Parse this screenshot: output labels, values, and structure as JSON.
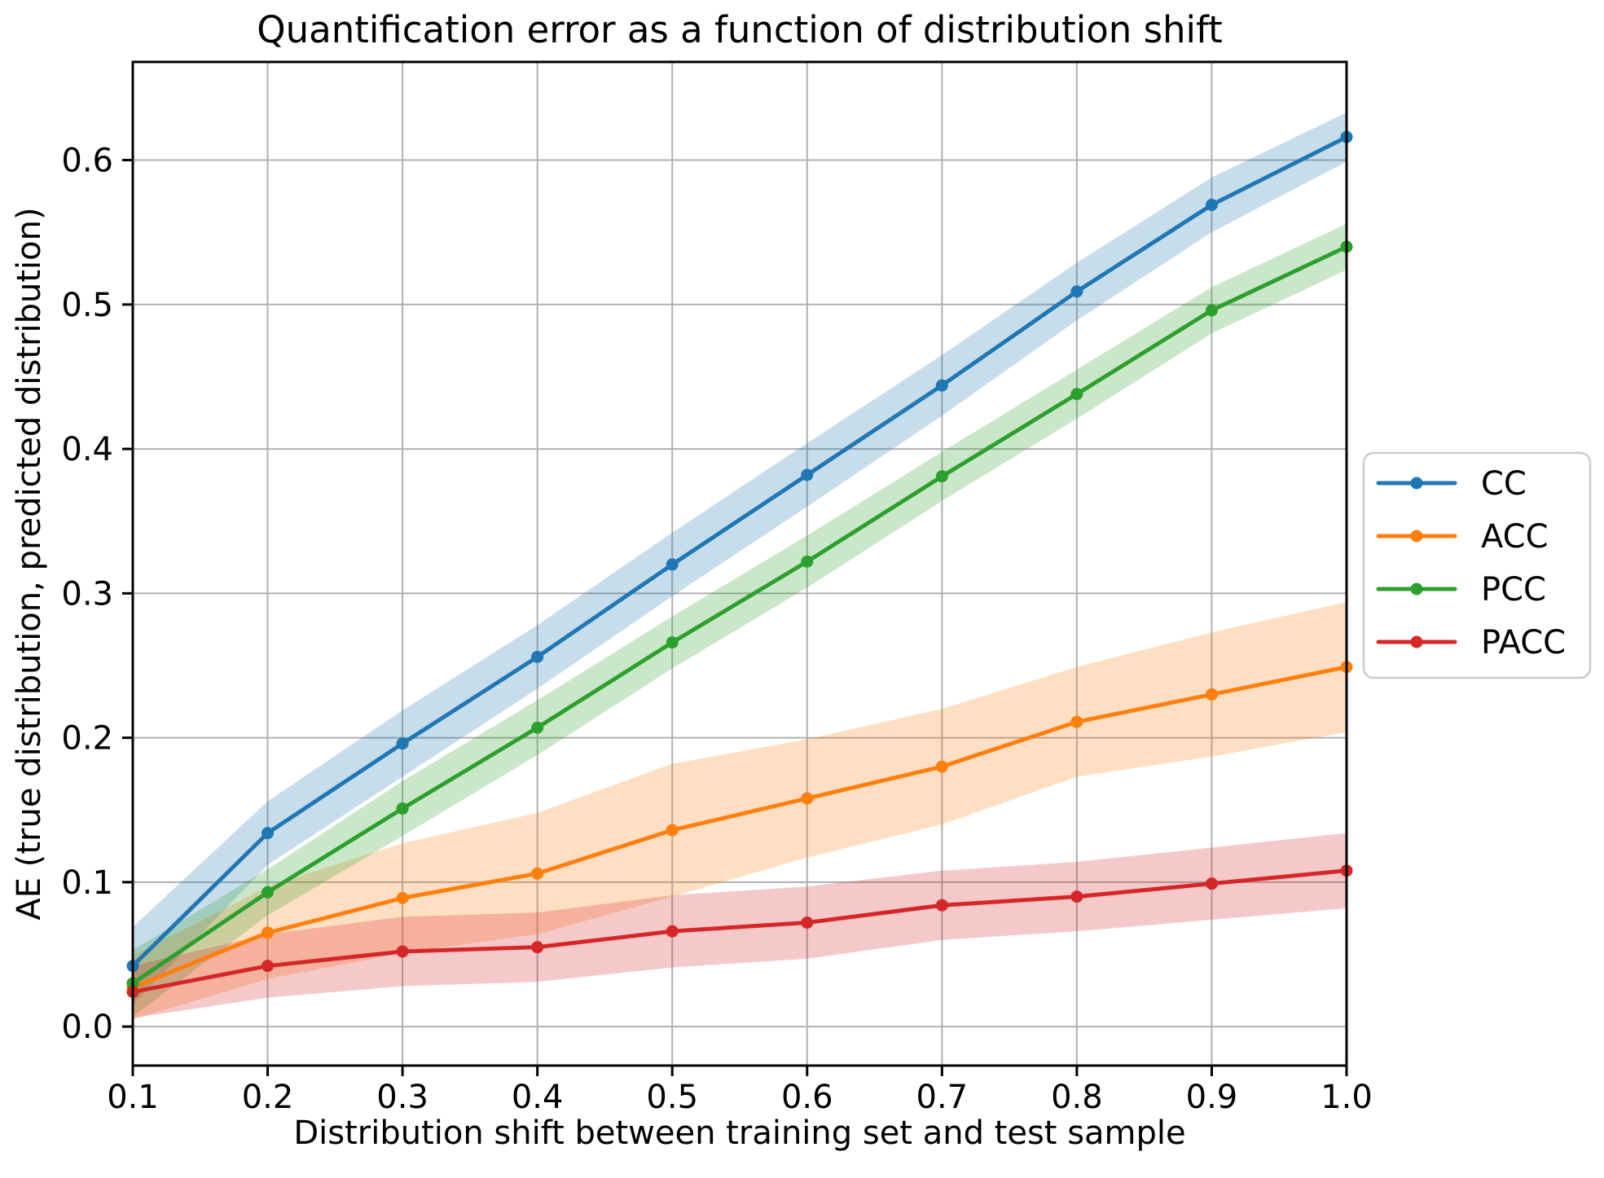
{
  "chart_data": {
    "type": "line",
    "title": "Quantification error as a function of distribution shift",
    "xlabel": "Distribution shift between training set and test sample",
    "ylabel": "AE (true distribution, predicted distribution)",
    "x": [
      0.1,
      0.2,
      0.3,
      0.4,
      0.5,
      0.6,
      0.7,
      0.8,
      0.9,
      1.0
    ],
    "xlim": [
      0.1,
      1.0
    ],
    "ylim": [
      -0.027,
      0.668
    ],
    "xticks": [
      "0.1",
      "0.2",
      "0.3",
      "0.4",
      "0.5",
      "0.6",
      "0.7",
      "0.8",
      "0.9",
      "1.0"
    ],
    "yticks": [
      "0.0",
      "0.1",
      "0.2",
      "0.3",
      "0.4",
      "0.5",
      "0.6"
    ],
    "grid": true,
    "marker": "circle",
    "band_opacity": 0.25,
    "legend_position": "right-outside",
    "series": [
      {
        "name": "CC",
        "color": "#1f77b4",
        "values": [
          0.042,
          0.134,
          0.196,
          0.256,
          0.32,
          0.382,
          0.444,
          0.509,
          0.569,
          0.616
        ],
        "band_lower": [
          0.015,
          0.112,
          0.173,
          0.234,
          0.298,
          0.36,
          0.423,
          0.489,
          0.55,
          0.599
        ],
        "band_upper": [
          0.069,
          0.156,
          0.219,
          0.278,
          0.342,
          0.404,
          0.465,
          0.529,
          0.588,
          0.633
        ]
      },
      {
        "name": "ACC",
        "color": "#ff7f0e",
        "values": [
          0.027,
          0.065,
          0.089,
          0.106,
          0.136,
          0.158,
          0.18,
          0.211,
          0.23,
          0.249
        ],
        "band_lower": [
          0.005,
          0.033,
          0.051,
          0.064,
          0.09,
          0.117,
          0.14,
          0.173,
          0.187,
          0.204
        ],
        "band_upper": [
          0.049,
          0.097,
          0.127,
          0.148,
          0.182,
          0.199,
          0.22,
          0.249,
          0.273,
          0.294
        ]
      },
      {
        "name": "PCC",
        "color": "#2ca02c",
        "values": [
          0.03,
          0.093,
          0.151,
          0.207,
          0.266,
          0.322,
          0.381,
          0.438,
          0.496,
          0.54
        ],
        "band_lower": [
          0.007,
          0.077,
          0.132,
          0.188,
          0.248,
          0.304,
          0.364,
          0.421,
          0.48,
          0.524
        ],
        "band_upper": [
          0.053,
          0.109,
          0.17,
          0.226,
          0.284,
          0.34,
          0.398,
          0.455,
          0.512,
          0.556
        ]
      },
      {
        "name": "PACC",
        "color": "#d62728",
        "values": [
          0.024,
          0.042,
          0.052,
          0.055,
          0.066,
          0.072,
          0.084,
          0.09,
          0.099,
          0.108
        ],
        "band_lower": [
          0.006,
          0.02,
          0.028,
          0.031,
          0.041,
          0.047,
          0.06,
          0.066,
          0.074,
          0.082
        ],
        "band_upper": [
          0.042,
          0.064,
          0.076,
          0.079,
          0.091,
          0.097,
          0.108,
          0.114,
          0.124,
          0.134
        ]
      }
    ],
    "legend": {
      "entries": [
        "CC",
        "ACC",
        "PCC",
        "PACC"
      ]
    },
    "colors": {
      "grid": "#b0b0b0",
      "spine": "#000000",
      "tick_label": "#000000",
      "background": "#ffffff",
      "legend_border": "#cccccc",
      "legend_background": "#ffffff"
    }
  }
}
